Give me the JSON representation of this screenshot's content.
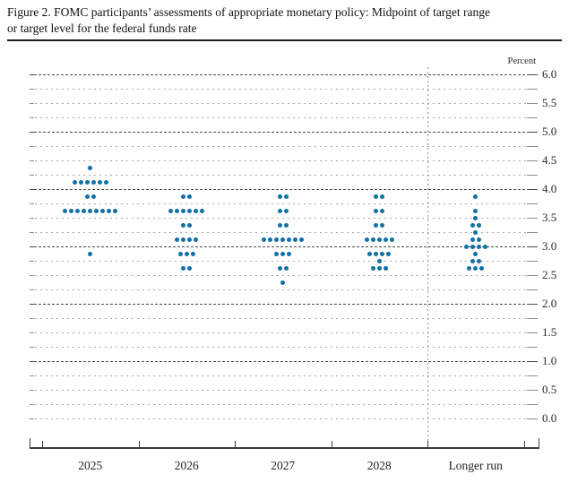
{
  "figure": {
    "title_line1": "Figure 2. FOMC participants’ assessments of appropriate monetary policy: Midpoint of target range",
    "title_line2": "or target level for the federal funds rate"
  },
  "chart_data": {
    "type": "scatter",
    "subtype": "fomc-dot-plot",
    "title": "FOMC participants’ assessments of appropriate monetary policy: Midpoint of target range or target level for the federal funds rate",
    "unit_label": "Percent",
    "ylim": [
      0.0,
      6.0
    ],
    "y_grid_step": 0.25,
    "y_label_step": 0.5,
    "y_tick_labels": [
      "6.0",
      "5.5",
      "5.0",
      "4.5",
      "4.0",
      "3.5",
      "3.0",
      "2.5",
      "2.0",
      "1.5",
      "1.0",
      "0.5",
      "0.0"
    ],
    "solid_gridlines_at": [
      1.0,
      2.0,
      3.0,
      4.0,
      5.0,
      6.0
    ],
    "grid": true,
    "legend": "none",
    "categories": [
      "2025",
      "2026",
      "2027",
      "2028",
      "Longer run"
    ],
    "separator_after_category": "2028",
    "dot_color": "#1170a5",
    "series": [
      {
        "name": "2025",
        "dots": [
          {
            "rate": 4.375,
            "count": 1
          },
          {
            "rate": 4.125,
            "count": 6
          },
          {
            "rate": 3.875,
            "count": 2
          },
          {
            "rate": 3.625,
            "count": 9
          },
          {
            "rate": 2.875,
            "count": 1
          }
        ]
      },
      {
        "name": "2026",
        "dots": [
          {
            "rate": 3.875,
            "count": 2
          },
          {
            "rate": 3.625,
            "count": 6
          },
          {
            "rate": 3.375,
            "count": 2
          },
          {
            "rate": 3.125,
            "count": 4
          },
          {
            "rate": 2.875,
            "count": 3
          },
          {
            "rate": 2.625,
            "count": 2
          }
        ]
      },
      {
        "name": "2027",
        "dots": [
          {
            "rate": 3.875,
            "count": 2
          },
          {
            "rate": 3.625,
            "count": 2
          },
          {
            "rate": 3.375,
            "count": 2
          },
          {
            "rate": 3.125,
            "count": 7
          },
          {
            "rate": 2.875,
            "count": 3
          },
          {
            "rate": 2.625,
            "count": 2
          },
          {
            "rate": 2.375,
            "count": 1
          }
        ]
      },
      {
        "name": "2028",
        "dots": [
          {
            "rate": 3.875,
            "count": 2
          },
          {
            "rate": 3.625,
            "count": 2
          },
          {
            "rate": 3.375,
            "count": 2
          },
          {
            "rate": 3.125,
            "count": 5
          },
          {
            "rate": 2.875,
            "count": 4
          },
          {
            "rate": 2.75,
            "count": 1
          },
          {
            "rate": 2.625,
            "count": 3
          }
        ]
      },
      {
        "name": "Longer run",
        "dots": [
          {
            "rate": 3.875,
            "count": 1
          },
          {
            "rate": 3.625,
            "count": 1
          },
          {
            "rate": 3.5,
            "count": 1
          },
          {
            "rate": 3.375,
            "count": 2
          },
          {
            "rate": 3.25,
            "count": 1
          },
          {
            "rate": 3.125,
            "count": 2
          },
          {
            "rate": 3.0,
            "count": 4
          },
          {
            "rate": 2.875,
            "count": 1
          },
          {
            "rate": 2.75,
            "count": 2
          },
          {
            "rate": 2.625,
            "count": 3
          }
        ]
      }
    ]
  }
}
